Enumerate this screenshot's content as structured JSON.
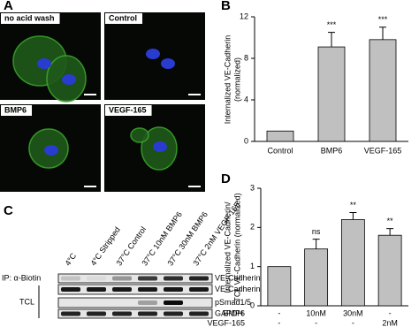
{
  "panels": {
    "a": "A",
    "b": "B",
    "c": "C",
    "d": "D"
  },
  "micrographs": [
    "no acid wash",
    "Control",
    "BMP6",
    "VEGF-165"
  ],
  "blot": {
    "lanes": [
      "4°C",
      "4°C Stripped",
      "37°C Control",
      "37°C 10nM BMP6",
      "37°C 30nM BMP6",
      "37°C 2nM VEGF-165"
    ],
    "ip_label": "IP: α-Biotin",
    "tcl_label": "TCL",
    "bands": [
      "VE-Cadherin",
      "VE-Cadherin",
      "pSmad1/5",
      "GAPDH"
    ]
  },
  "chart_data": [
    {
      "type": "bar",
      "y_label": [
        "Internalized VE-Cadherin",
        "(normalized)"
      ],
      "categories": [
        "Control",
        "BMP6",
        "VEGF-165"
      ],
      "values": [
        1,
        9.1,
        9.8
      ],
      "errors": [
        0,
        1.4,
        1.2
      ],
      "annotations": [
        null,
        "***",
        "***"
      ],
      "color": "#c0c0c0",
      "ylim": [
        0,
        12
      ],
      "yticks": [
        0,
        4,
        8,
        12
      ]
    },
    {
      "type": "bar",
      "y_label": [
        "Internalized VE-Cadherin/",
        "TCL VE-Cadherin (normalized)"
      ],
      "values": [
        1,
        1.45,
        2.2,
        1.8
      ],
      "errors": [
        0,
        0.25,
        0.18,
        0.17
      ],
      "annotations": [
        null,
        "ns",
        "**",
        "**"
      ],
      "conditions": [
        {
          "name": "BMP6",
          "values": [
            "-",
            "10nM",
            "30nM",
            "-"
          ]
        },
        {
          "name": "VEGF-165",
          "values": [
            "-",
            "-",
            "-",
            "2nM"
          ]
        }
      ],
      "color": "#c0c0c0",
      "ylim": [
        0,
        3
      ],
      "yticks": [
        0,
        1,
        2,
        3
      ]
    }
  ]
}
